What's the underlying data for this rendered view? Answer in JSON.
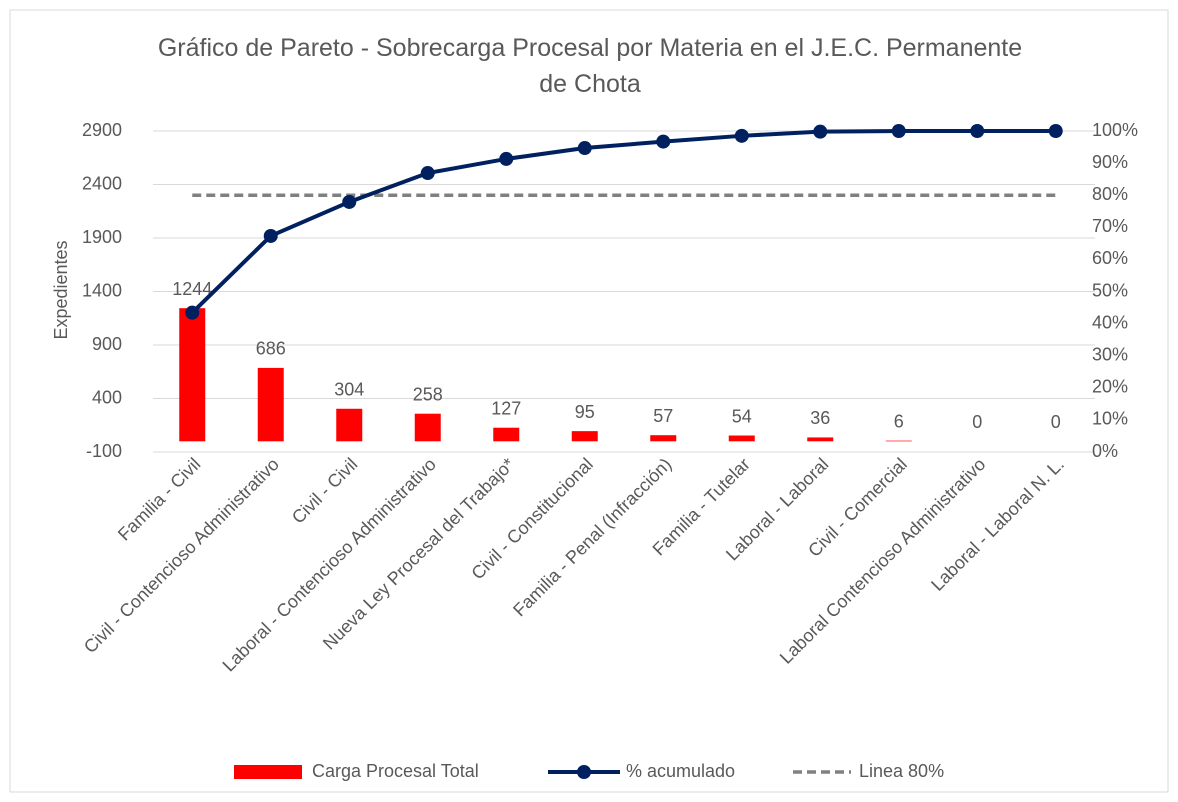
{
  "chart_data": {
    "type": "bar",
    "title": "Gráfico de Pareto - Sobrecarga Procesal por Materia en el J.E.C. Permanente de Chota",
    "y_label": "Expedientes",
    "categories": [
      "Familia - Civil",
      "Civil - Contencioso Administrativo",
      "Civil - Civil",
      "Laboral - Contencioso Administrativo",
      "Nueva Ley Procesal del Trabajo*",
      "Civil - Constitucional",
      "Familia - Penal (Infracción)",
      "Familia - Tutelar",
      "Laboral - Laboral",
      "Civil - Comercial",
      "Laboral Contencioso Administrativo",
      "Laboral - Laboral N. L."
    ],
    "series": [
      {
        "name": "Carga Procesal Total",
        "type": "bar",
        "color": "#ff0000",
        "values": [
          1244,
          686,
          304,
          258,
          127,
          95,
          57,
          54,
          36,
          6,
          0,
          0
        ]
      },
      {
        "name": "% acumulado",
        "type": "line",
        "axis": "y2",
        "color": "#002060",
        "values": [
          43.4,
          67.3,
          77.9,
          86.9,
          91.3,
          94.7,
          96.7,
          98.5,
          99.8,
          100,
          100,
          100
        ]
      },
      {
        "name": "Linea 80%",
        "type": "dashed",
        "axis": "y2",
        "color": "#808080",
        "values": [
          80,
          80,
          80,
          80,
          80,
          80,
          80,
          80,
          80,
          80,
          80,
          80
        ]
      }
    ],
    "ylim": [
      -100,
      2900
    ],
    "yticks": [
      -100,
      400,
      900,
      1400,
      1900,
      2400,
      2900
    ],
    "y2lim": [
      0,
      100
    ],
    "y2ticks": [
      {
        "value": 0,
        "label": "0%"
      },
      {
        "value": 10,
        "label": "10%"
      },
      {
        "value": 20,
        "label": "20%"
      },
      {
        "value": 30,
        "label": "30%"
      },
      {
        "value": 40,
        "label": "40%"
      },
      {
        "value": 50,
        "label": "50%"
      },
      {
        "value": 60,
        "label": "60%"
      },
      {
        "value": 70,
        "label": "70%"
      },
      {
        "value": 80,
        "label": "80%"
      },
      {
        "value": 90,
        "label": "90%"
      },
      {
        "value": 100,
        "label": "100%"
      }
    ],
    "grid": true,
    "legend": "bottom"
  }
}
